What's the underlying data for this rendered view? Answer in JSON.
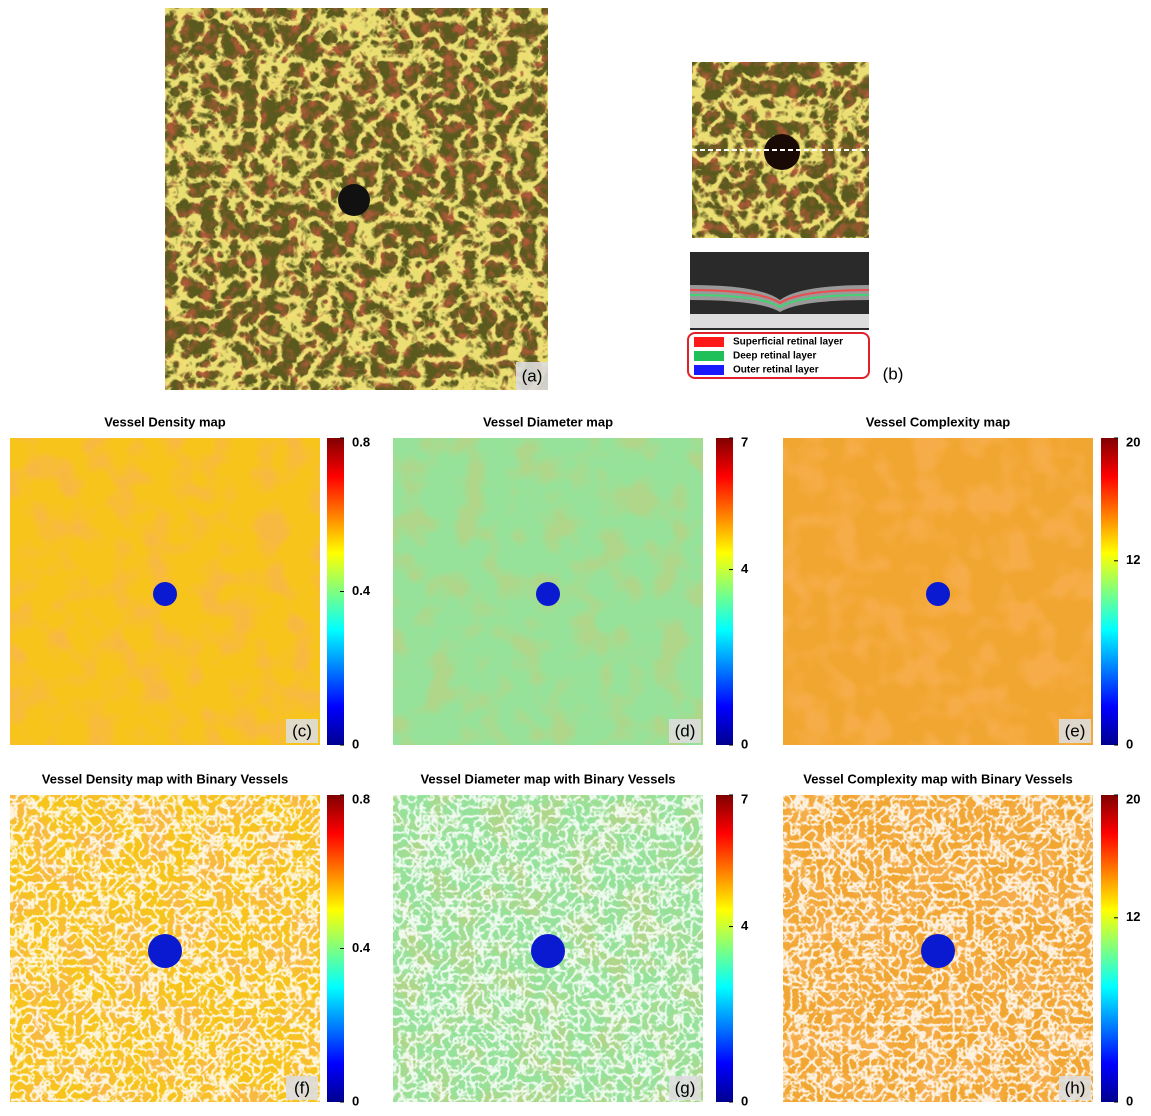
{
  "panel_a": {
    "label": "(a)"
  },
  "panel_b": {
    "label": "(b)",
    "legend": [
      {
        "name": "Superficial retinal layer",
        "color": "#ff1a1a"
      },
      {
        "name": "Deep retinal layer",
        "color": "#1fbf5a"
      },
      {
        "name": "Outer retinal layer",
        "color": "#1a1aff"
      }
    ]
  },
  "maps": [
    {
      "title": "Vessel Density map",
      "label": "(c)",
      "clim": [
        0,
        0.8
      ],
      "cticks": [
        0,
        0.4,
        0.8
      ]
    },
    {
      "title": "Vessel Diameter map",
      "label": "(d)",
      "clim": [
        0,
        7
      ],
      "cticks": [
        0,
        4,
        7
      ]
    },
    {
      "title": "Vessel Complexity map",
      "label": "(e)",
      "clim": [
        0,
        20
      ],
      "cticks": [
        0,
        12,
        20
      ]
    },
    {
      "title": "Vessel Density map with Binary Vessels",
      "label": "(f)",
      "clim": [
        0,
        0.8
      ],
      "cticks": [
        0,
        0.4,
        0.8
      ]
    },
    {
      "title": "Vessel Diameter map with Binary Vessels",
      "label": "(g)",
      "clim": [
        0,
        7
      ],
      "cticks": [
        0,
        4,
        7
      ]
    },
    {
      "title": "Vessel Complexity map with Binary Vessels",
      "label": "(h)",
      "clim": [
        0,
        20
      ],
      "cticks": [
        0,
        12,
        20
      ]
    }
  ]
}
